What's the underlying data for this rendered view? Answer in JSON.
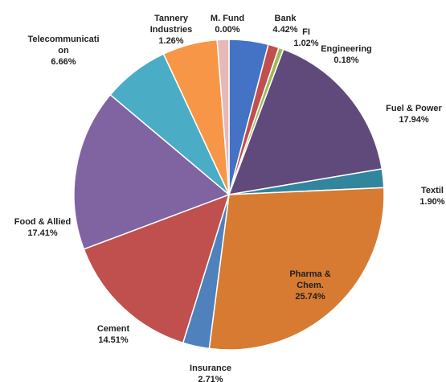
{
  "chart_data": {
    "type": "pie",
    "title": "",
    "start_angle_deg": 0,
    "direction": "clockwise",
    "slices": [
      {
        "name": "Bank",
        "value": 4.42,
        "value_label": "4.42%",
        "label_lines": [
          "Bank",
          "4.42%"
        ],
        "color": "#4472C4"
      },
      {
        "name": "FI",
        "value": 1.02,
        "value_label": "1.02%",
        "label_lines": [
          "FI",
          "1.02%"
        ],
        "color": "#C0504D"
      },
      {
        "name": "Engineering",
        "value": 0.18,
        "value_label": "0.18%",
        "label_lines": [
          "Engineering",
          "0.18%"
        ],
        "color": "#9BBB59"
      },
      {
        "name": "Fuel & Power",
        "value": 17.94,
        "value_label": "17.94%",
        "label_lines": [
          "Fuel & Power",
          "17.94%"
        ],
        "color": "#604A7B"
      },
      {
        "name": "Textile",
        "value": 1.9,
        "value_label": "1.90%",
        "label_lines": [
          "Textil",
          "1.90%"
        ],
        "color": "#31859C"
      },
      {
        "name": "Pharma & Chem.",
        "value": 25.74,
        "value_label": "25.74%",
        "label_lines": [
          "Pharma &",
          "Chem.",
          "25.74%"
        ],
        "color": "#D67B31"
      },
      {
        "name": "Insurance",
        "value": 2.71,
        "value_label": "2.71%",
        "label_lines": [
          "Insurance",
          "2.71%"
        ],
        "color": "#4F81BD"
      },
      {
        "name": "Cement",
        "value": 14.51,
        "value_label": "14.51%",
        "label_lines": [
          "Cement",
          "14.51%"
        ],
        "color": "#C0504D"
      },
      {
        "name": "Food & Allied",
        "value": 17.41,
        "value_label": "17.41%",
        "label_lines": [
          "Food & Allied",
          "17.41%"
        ],
        "color": "#8064A2"
      },
      {
        "name": "Telecommunication",
        "value": 6.66,
        "value_label": "6.66%",
        "label_lines": [
          "Telecommunicati",
          "on",
          "6.66%"
        ],
        "color": "#4BACC6"
      },
      {
        "name": "Tannery Industries",
        "value": 1.26,
        "value_label": "1.26%",
        "label_lines": [
          "Tannery",
          "Industries",
          "1.26%"
        ],
        "color": "#F79646"
      },
      {
        "name": "M. Fund",
        "value": 0.0,
        "value_label": "0.00%",
        "label_lines": [
          "M. Fund",
          "0.00%"
        ],
        "color": "#E6B9B8"
      }
    ]
  }
}
